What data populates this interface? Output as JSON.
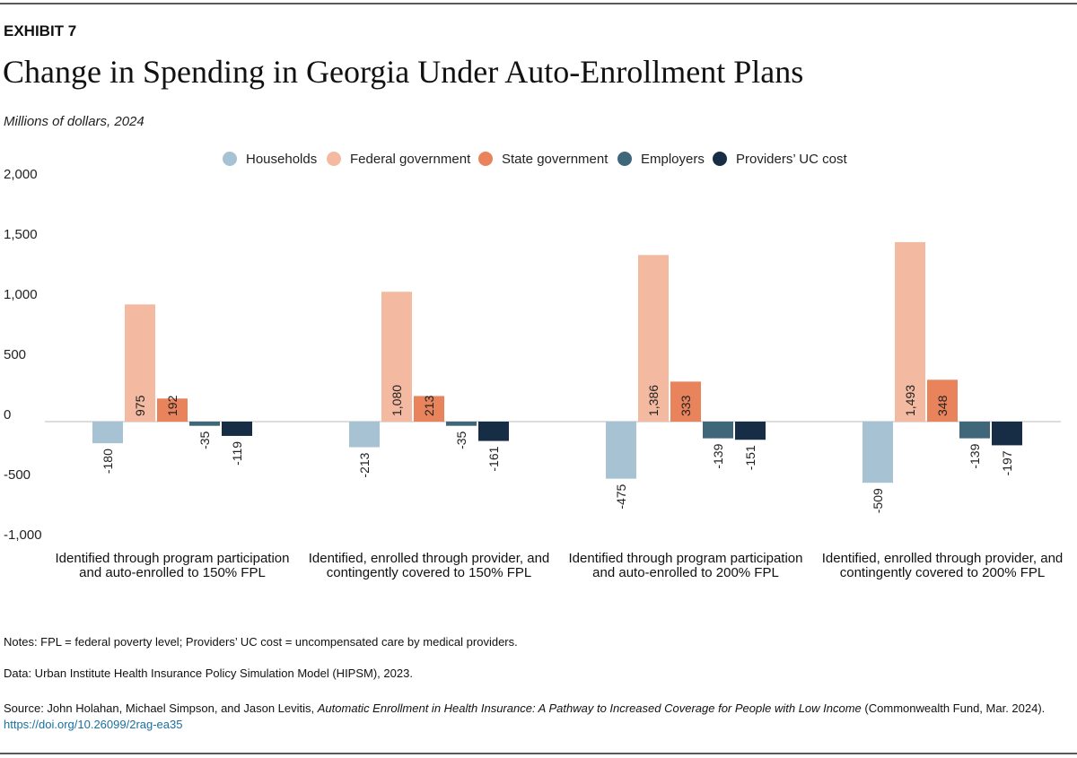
{
  "chart_data": {
    "type": "bar",
    "kicker": "EXHIBIT 7",
    "title": "Change in Spending in Georgia Under Auto-Enrollment Plans",
    "subtitle": "Millions of dollars, 2024",
    "categories": [
      "Identified through program participation and auto-enrolled to 150% FPL",
      "Identified, enrolled through provider, and contingently covered to 150% FPL",
      "Identified through program participation and auto-enrolled to 200% FPL",
      "Identified, enrolled through provider, and contingently covered to 200% FPL"
    ],
    "series": [
      {
        "name": "Households",
        "color": "#a7c2d2",
        "values": [
          -180,
          -213,
          -475,
          -509
        ]
      },
      {
        "name": "Federal government",
        "color": "#f4b9a1",
        "values": [
          975,
          1080,
          1386,
          1493
        ],
        "value_labels": [
          "975",
          "1,080",
          "1,386",
          "1,493"
        ]
      },
      {
        "name": "State government",
        "color": "#e8835b",
        "values": [
          192,
          213,
          333,
          348
        ]
      },
      {
        "name": "Employers",
        "color": "#3f6679",
        "values": [
          -35,
          -35,
          -139,
          -139
        ]
      },
      {
        "name": "Providers’ UC cost",
        "color": "#172c45",
        "values": [
          -119,
          -161,
          -151,
          -197
        ]
      }
    ],
    "ylim": [
      -1000,
      2000
    ],
    "yticks": [
      {
        "value": 2000,
        "label": "2,000"
      },
      {
        "value": 1500,
        "label": "1,500"
      },
      {
        "value": 1000,
        "label": "1,000"
      },
      500,
      0,
      -500,
      {
        "value": -1000,
        "label": "-1,000"
      }
    ],
    "grid": false,
    "legend": "top"
  },
  "footer": {
    "notes": "Notes: FPL = federal poverty level; Providers’ UC cost = uncompensated care by medical providers.",
    "data": "Data: Urban Institute Health Insurance Policy Simulation Model (HIPSM), 2023.",
    "source_prefix": "Source: John Holahan, Michael Simpson, and Jason Levitis,",
    "source_title": "Automatic Enrollment in Health Insurance: A Pathway to Increased Coverage for People with Low Income",
    "source_suffix": "(Commonwealth Fund, Mar. 2024).",
    "source_link": "https://doi.org/10.26099/2rag-ea35"
  }
}
